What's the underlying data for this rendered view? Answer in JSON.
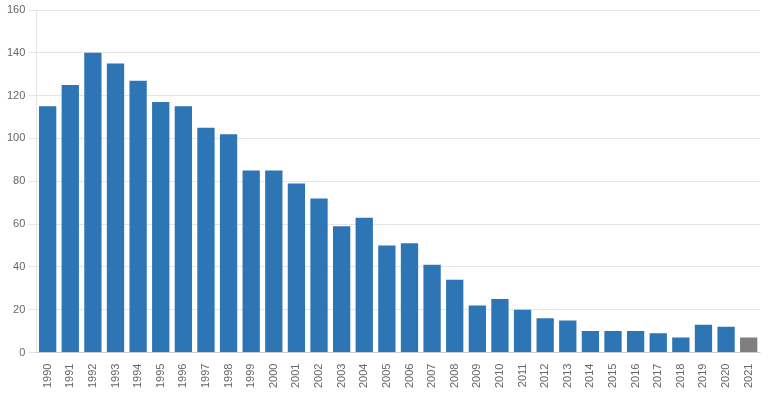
{
  "chart_data": {
    "type": "bar",
    "categories": [
      "1990",
      "1991",
      "1992",
      "1993",
      "1994",
      "1995",
      "1996",
      "1997",
      "1998",
      "1999",
      "2000",
      "2001",
      "2002",
      "2003",
      "2004",
      "2005",
      "2006",
      "2007",
      "2008",
      "2009",
      "2010",
      "2011",
      "2012",
      "2013",
      "2014",
      "2015",
      "2016",
      "2017",
      "2018",
      "2019",
      "2020",
      "2021"
    ],
    "values": [
      115,
      125,
      140,
      135,
      127,
      117,
      115,
      105,
      102,
      85,
      85,
      79,
      72,
      59,
      63,
      50,
      51,
      41,
      34,
      22,
      25,
      20,
      16,
      15,
      10,
      10,
      10,
      9,
      7,
      13,
      12,
      7
    ],
    "colors": [
      "#2E75B6",
      "#2E75B6",
      "#2E75B6",
      "#2E75B6",
      "#2E75B6",
      "#2E75B6",
      "#2E75B6",
      "#2E75B6",
      "#2E75B6",
      "#2E75B6",
      "#2E75B6",
      "#2E75B6",
      "#2E75B6",
      "#2E75B6",
      "#2E75B6",
      "#2E75B6",
      "#2E75B6",
      "#2E75B6",
      "#2E75B6",
      "#2E75B6",
      "#2E75B6",
      "#2E75B6",
      "#2E75B6",
      "#2E75B6",
      "#2E75B6",
      "#2E75B6",
      "#2E75B6",
      "#2E75B6",
      "#2E75B6",
      "#2E75B6",
      "#2E75B6",
      "#7F7F7F"
    ],
    "ylim": [
      0,
      160
    ],
    "yticks": [
      0,
      20,
      40,
      60,
      80,
      100,
      120,
      140,
      160
    ],
    "grid": true
  }
}
